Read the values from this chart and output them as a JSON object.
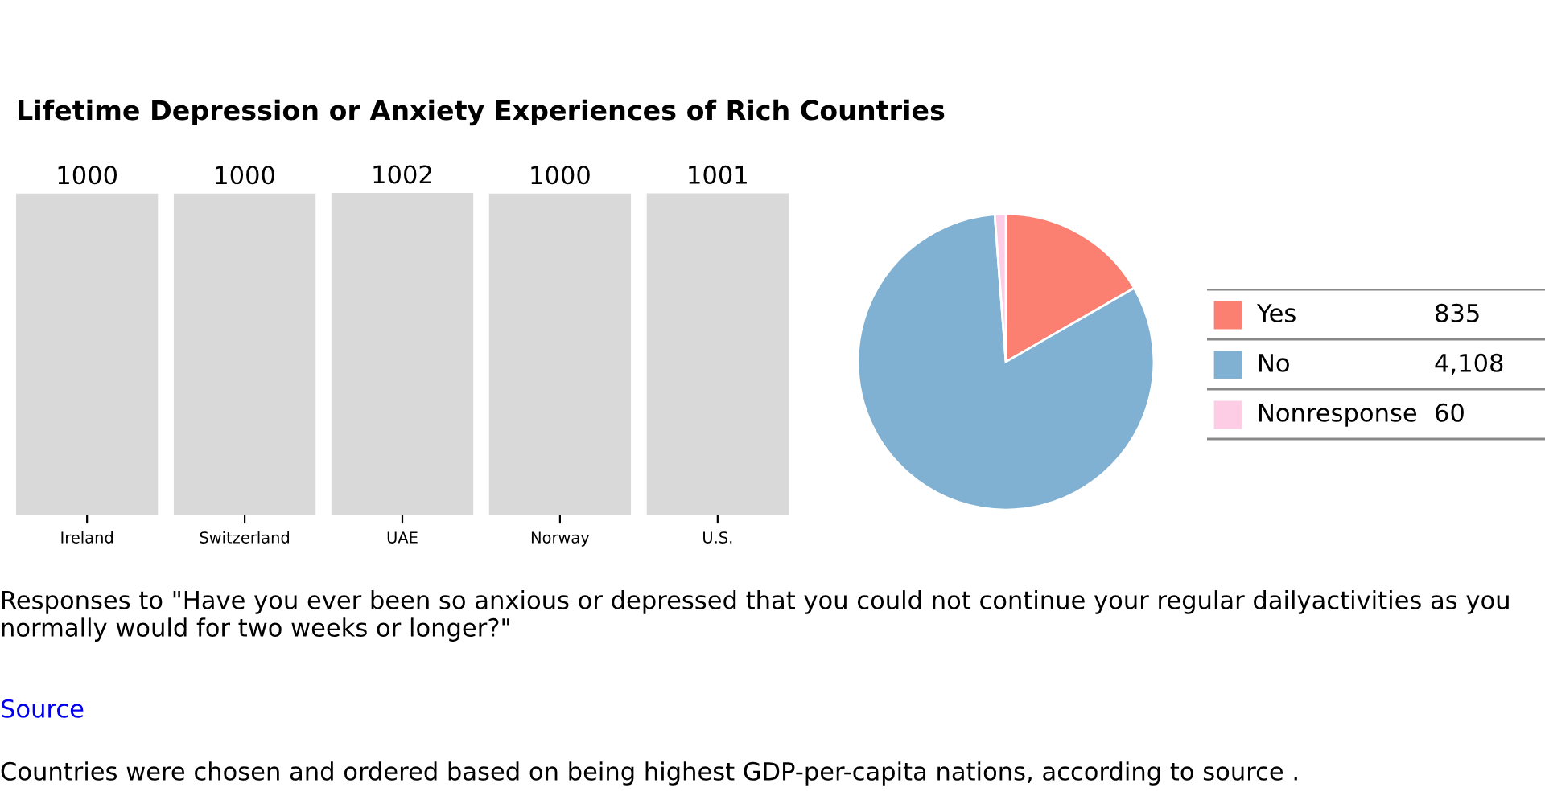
{
  "chart_data": [
    {
      "type": "bar",
      "title": "Lifetime Depression or Anxiety Experiences of Rich Countries",
      "categories": [
        "Ireland",
        "Switzerland",
        "UAE",
        "Norway",
        "U.S."
      ],
      "values": [
        1000,
        1000,
        1002,
        1000,
        1001
      ],
      "color": "#d9d9d9",
      "data_labels": true,
      "annotations": [
        "Responses to \"Have you ever been so anxious or depressed that you could not continue your regular dailyactivities as you normally would for two weeks or longer?\"",
        "Source",
        "Countries were chosen and ordered based on being highest GDP-per-capita nations, according to source ."
      ]
    },
    {
      "type": "pie",
      "categories": [
        "Yes",
        "No",
        "Nonresponse"
      ],
      "values": [
        835,
        4108,
        60
      ],
      "colors": [
        "#fb8072",
        "#80b1d3",
        "#fccde5"
      ],
      "value_labels": [
        "835",
        "4,108",
        "60"
      ],
      "legend": "right"
    }
  ]
}
